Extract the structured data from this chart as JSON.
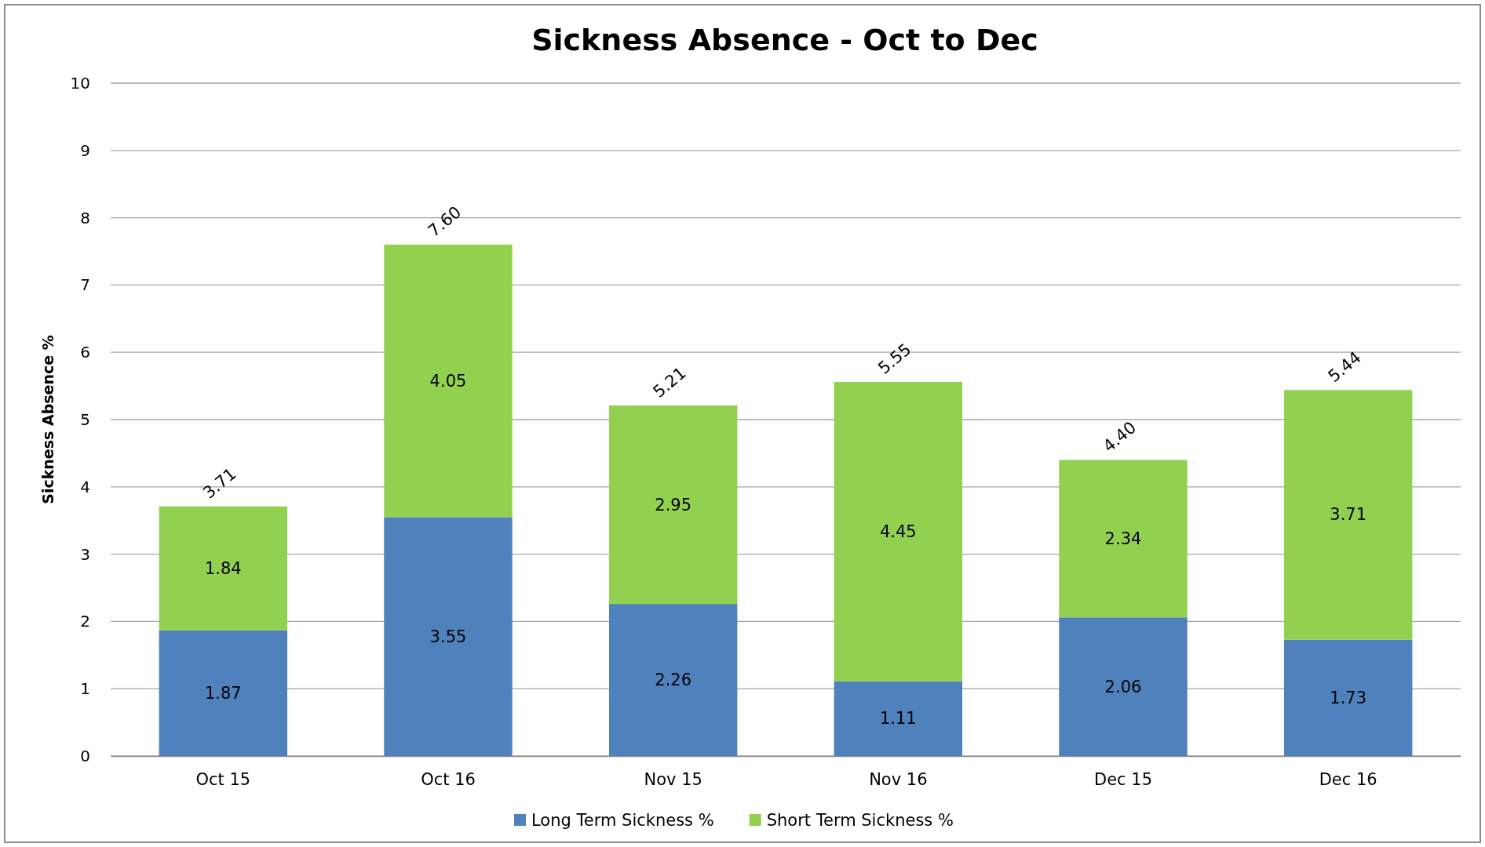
{
  "chart_data": {
    "type": "bar",
    "title": "Sickness Absence - Oct to Dec",
    "ylabel": "Sickness Absence %",
    "categories": [
      "Oct 15",
      "Oct 16",
      "Nov 15",
      "Nov 16",
      "Dec 15",
      "Dec 16"
    ],
    "series": [
      {
        "name": "Long Term Sickness %",
        "color": "#4f81bd",
        "values": [
          1.87,
          3.55,
          2.26,
          1.11,
          2.06,
          1.73
        ]
      },
      {
        "name": "Short Term Sickness %",
        "color": "#92d050",
        "values": [
          1.84,
          4.05,
          2.95,
          4.45,
          2.34,
          3.71
        ]
      }
    ],
    "stacked": true,
    "data_labels": true,
    "totals": [
      "3.71",
      "7.60",
      "5.21",
      "5.55",
      "4.40",
      "5.44"
    ],
    "ylim": [
      0,
      10
    ],
    "yticks": [
      0,
      1,
      2,
      3,
      4,
      5,
      6,
      7,
      8,
      9,
      10
    ],
    "grid": "y",
    "legend": "bottom"
  }
}
